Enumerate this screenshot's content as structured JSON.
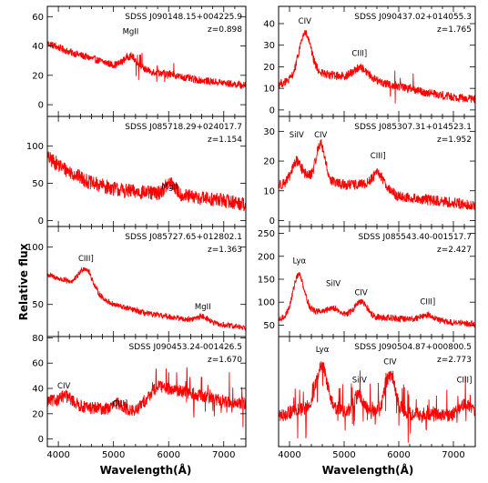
{
  "figure": {
    "ylabel": "Relative flux",
    "xlabel_left": "Wavelength(Å)",
    "xlabel_right": "Wavelength(Å)"
  },
  "chart_data": [
    {
      "type": "line",
      "column": "left",
      "row": 0,
      "name": "SDSS J090148.15+004225.9",
      "redshift": "z=0.898",
      "xlim": [
        3800,
        7400
      ],
      "ylim": [
        -8,
        67
      ],
      "x_ticks": [
        4000,
        5000,
        6000,
        7000
      ],
      "y_ticks": [
        0,
        20,
        40,
        60
      ],
      "y_tick_labels": [
        "0",
        "20",
        "40",
        "60"
      ],
      "line_color": "#ff0000",
      "lines": [
        {
          "label": "MgII",
          "x": 5310,
          "y": 48
        }
      ],
      "features": [
        {
          "x": 5310,
          "w": 120,
          "h": 8
        }
      ],
      "spikes_region": [
        5350,
        6100
      ],
      "noise": 2.5,
      "continuum": {
        "x": [
          3800,
          4200,
          5000,
          5800,
          6500,
          7400
        ],
        "y": [
          42,
          36,
          27,
          22,
          17,
          13
        ]
      }
    },
    {
      "type": "line",
      "column": "left",
      "row": 1,
      "name": "SDSS J085718.29+024017.7",
      "redshift": "z=1.154",
      "xlim": [
        3800,
        7400
      ],
      "ylim": [
        -8,
        140
      ],
      "x_ticks": [
        4000,
        5000,
        6000,
        7000
      ],
      "y_ticks": [
        0,
        50,
        100
      ],
      "y_tick_labels": [
        "0",
        "50",
        "100"
      ],
      "line_color": "#ff0000",
      "lines": [
        {
          "label": "MgII",
          "x": 6020,
          "y": 42
        }
      ],
      "features": [
        {
          "x": 6030,
          "w": 100,
          "h": 15
        }
      ],
      "spikes_region": null,
      "noise": 10,
      "continuum": {
        "x": [
          3800,
          4100,
          4600,
          5200,
          6000,
          7000,
          7400
        ],
        "y": [
          85,
          70,
          50,
          40,
          35,
          27,
          22
        ]
      }
    },
    {
      "type": "line",
      "column": "left",
      "row": 2,
      "name": "SDSS J085727.65+012802.1",
      "redshift": "z=1.363",
      "xlim": [
        3800,
        7400
      ],
      "ylim": [
        22,
        118
      ],
      "x_ticks": [
        4000,
        5000,
        6000,
        7000
      ],
      "y_ticks": [
        50,
        100
      ],
      "y_tick_labels": [
        "50",
        "100"
      ],
      "line_color": "#ff0000",
      "lines": [
        {
          "label": "CIII]",
          "x": 4500,
          "y": 88
        },
        {
          "label": "MgII",
          "x": 6620,
          "y": 46
        }
      ],
      "features": [
        {
          "x": 4500,
          "w": 120,
          "h": 18
        },
        {
          "x": 6620,
          "w": 110,
          "h": 5
        }
      ],
      "spikes_region": null,
      "noise": 2.5,
      "continuum": {
        "x": [
          3800,
          4400,
          5000,
          5600,
          6200,
          6800,
          7400
        ],
        "y": [
          76,
          66,
          50,
          42,
          38,
          33,
          30
        ]
      }
    },
    {
      "type": "line",
      "column": "left",
      "row": 3,
      "name": "SDSS J090453.24-001426.5",
      "redshift": "z=1.670",
      "xlim": [
        3800,
        7400
      ],
      "ylim": [
        -6,
        81
      ],
      "x_ticks": [
        4000,
        5000,
        6000,
        7000
      ],
      "y_ticks": [
        0,
        20,
        40,
        60,
        80
      ],
      "y_tick_labels": [
        "0",
        "20",
        "40",
        "60",
        "80"
      ],
      "line_color": "#ff0000",
      "lines": [
        {
          "label": "CIV",
          "x": 4100,
          "y": 40
        },
        {
          "label": "CIII]",
          "x": 5120,
          "y": 26
        }
      ],
      "features": [
        {
          "x": 4140,
          "w": 120,
          "h": 6
        },
        {
          "x": 5090,
          "w": 90,
          "h": 5
        }
      ],
      "spikes_region": [
        5700,
        7400
      ],
      "noise": 5,
      "continuum": {
        "x": [
          3800,
          4500,
          5400,
          5800,
          6200,
          7000,
          7400
        ],
        "y": [
          30,
          25,
          22,
          42,
          38,
          30,
          28
        ]
      }
    },
    {
      "type": "line",
      "column": "right",
      "row": 0,
      "name": "SDSS J090437.02+014055.3",
      "redshift": "z=1.765",
      "xlim": [
        3800,
        7400
      ],
      "ylim": [
        -3,
        48
      ],
      "x_ticks": [
        4000,
        5000,
        6000,
        7000
      ],
      "y_ticks": [
        0,
        10,
        20,
        30,
        40
      ],
      "y_tick_labels": [
        "0",
        "10",
        "20",
        "30",
        "40"
      ],
      "line_color": "#ff0000",
      "lines": [
        {
          "label": "CIV",
          "x": 4280,
          "y": 40
        },
        {
          "label": "CIII]",
          "x": 5280,
          "y": 25
        }
      ],
      "features": [
        {
          "x": 4280,
          "w": 110,
          "h": 20
        },
        {
          "x": 5300,
          "w": 130,
          "h": 5
        }
      ],
      "spikes_region": [
        5800,
        6300
      ],
      "noise": 2,
      "continuum": {
        "x": [
          3800,
          4500,
          5500,
          6300,
          7000,
          7400
        ],
        "y": [
          12,
          17,
          14,
          9,
          6,
          5
        ]
      }
    },
    {
      "type": "line",
      "column": "right",
      "row": 1,
      "name": "SDSS J085307.31+014523.1",
      "redshift": "z=1.952",
      "xlim": [
        3800,
        7400
      ],
      "ylim": [
        -2,
        35
      ],
      "x_ticks": [
        4000,
        5000,
        6000,
        7000
      ],
      "y_ticks": [
        0,
        10,
        20,
        30
      ],
      "y_tick_labels": [
        "0",
        "10",
        "20",
        "30"
      ],
      "line_color": "#ff0000",
      "lines": [
        {
          "label": "SiIV",
          "x": 4130,
          "y": 28
        },
        {
          "label": "CIV",
          "x": 4570,
          "y": 28
        },
        {
          "label": "CIII]",
          "x": 5620,
          "y": 21
        }
      ],
      "features": [
        {
          "x": 4130,
          "w": 80,
          "h": 6
        },
        {
          "x": 4570,
          "w": 80,
          "h": 12
        },
        {
          "x": 5630,
          "w": 110,
          "h": 4
        }
      ],
      "spikes_region": null,
      "noise": 1.8,
      "continuum": {
        "x": [
          3800,
          4300,
          5000,
          5600,
          6000,
          7000,
          7400
        ],
        "y": [
          12,
          15,
          12,
          12,
          8,
          6,
          5
        ]
      }
    },
    {
      "type": "line",
      "column": "right",
      "row": 2,
      "name": "SDSS J085543.40-001517.7",
      "redshift": "z=2.427",
      "xlim": [
        3800,
        7400
      ],
      "ylim": [
        25,
        265
      ],
      "x_ticks": [
        4000,
        5000,
        6000,
        7000
      ],
      "y_ticks": [
        50,
        100,
        150,
        200,
        250
      ],
      "y_tick_labels": [
        "50",
        "100",
        "150",
        "200",
        "250"
      ],
      "line_color": "#ff0000",
      "lines": [
        {
          "label": "Lyα",
          "x": 4180,
          "y": 185
        },
        {
          "label": "SiIV",
          "x": 4800,
          "y": 135
        },
        {
          "label": "CIV",
          "x": 5310,
          "y": 115
        },
        {
          "label": "CIII]",
          "x": 6530,
          "y": 95
        }
      ],
      "features": [
        {
          "x": 4170,
          "w": 100,
          "h": 80
        },
        {
          "x": 4790,
          "w": 80,
          "h": 12
        },
        {
          "x": 5310,
          "w": 110,
          "h": 30
        },
        {
          "x": 6530,
          "w": 140,
          "h": 12
        }
      ],
      "spikes_region": null,
      "noise": 7,
      "continuum": {
        "x": [
          3800,
          4100,
          4500,
          5500,
          6500,
          7400
        ],
        "y": [
          60,
          80,
          80,
          68,
          60,
          52
        ]
      }
    },
    {
      "type": "line",
      "column": "right",
      "row": 3,
      "name": "SDSS J090504.87+000800.5",
      "redshift": "z=2.773",
      "xlim": [
        3800,
        7400
      ],
      "ylim": [
        -5,
        31
      ],
      "x_ticks": [
        4000,
        5000,
        6000,
        7000
      ],
      "y_ticks": [],
      "y_tick_labels": [],
      "line_color": "#ff0000",
      "lines": [
        {
          "label": "Lyα",
          "x": 4600,
          "y": 26
        },
        {
          "label": "SiIV",
          "x": 5280,
          "y": 16
        },
        {
          "label": "CIV",
          "x": 5840,
          "y": 22
        },
        {
          "label": "CIII]",
          "x": 7200,
          "y": 16
        }
      ],
      "features": [
        {
          "x": 4590,
          "w": 100,
          "h": 14
        },
        {
          "x": 5270,
          "w": 80,
          "h": 5
        },
        {
          "x": 5840,
          "w": 100,
          "h": 12
        },
        {
          "x": 7200,
          "w": 120,
          "h": 4
        }
      ],
      "spikes_region": [
        4000,
        7400
      ],
      "noise": 2.2,
      "continuum": {
        "x": [
          3800,
          4400,
          5000,
          6000,
          7000,
          7400
        ],
        "y": [
          5,
          8,
          7,
          6,
          5,
          5
        ]
      }
    }
  ]
}
